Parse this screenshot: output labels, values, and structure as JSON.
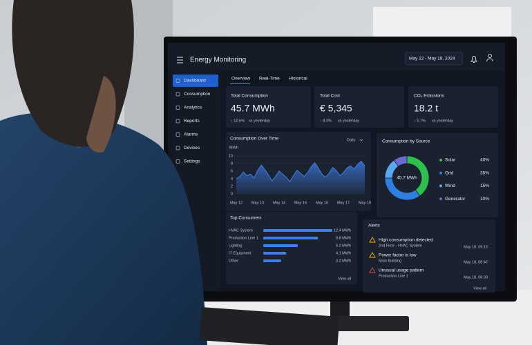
{
  "header": {
    "title": "Energy Monitoring",
    "date_range": "May 12 - May 18, 2024"
  },
  "nav": [
    "Dashboard",
    "Consumption",
    "Analytics",
    "Reports",
    "Alarms",
    "Devices",
    "Settings"
  ],
  "tabs": [
    "Overview",
    "Real-Time",
    "Historical"
  ],
  "kpis": [
    {
      "label": "Total Consumption",
      "value": "45.7 MWh",
      "change": "↑ 12.5%",
      "note": "vs yesterday"
    },
    {
      "label": "Total Cost",
      "value": "€ 5,345",
      "change": "↑ 8.3%",
      "note": "vs yesterday"
    },
    {
      "label": "CO₂ Emissions",
      "value": "18.2 t",
      "change": "↓ 5.7%",
      "note": "vs yesterday"
    }
  ],
  "area": {
    "title": "Consumption Over Time",
    "period": "Daily",
    "y_label": "MWh",
    "ylim": [
      0,
      10
    ],
    "yticks": [
      0,
      2,
      4,
      6,
      8,
      10
    ],
    "xticks": [
      "May 12",
      "May 13",
      "May 14",
      "May 15",
      "May 16",
      "May 17",
      "May 18"
    ],
    "color": "#3f7fe8",
    "values": [
      4,
      4.6,
      5.8,
      4.8,
      5.2,
      4.2,
      6.2,
      7.6,
      6.4,
      5,
      3.4,
      4.6,
      6,
      5.2,
      4.4,
      3.2,
      4.8,
      6.2,
      5.4,
      4.6,
      5.6,
      7.2,
      8.2,
      6.8,
      5.2,
      4.4,
      5.4,
      7,
      6.2,
      4.8,
      5.6,
      6.8,
      7.4,
      6.6,
      7.8,
      8.6,
      7.4
    ]
  },
  "donut": {
    "title": "Consumption by Source",
    "center": "45.7 MWh",
    "categories": [
      "Solar",
      "Grid",
      "Wind",
      "Generator"
    ],
    "values": [
      40,
      35,
      15,
      10
    ],
    "value_labels": [
      "40%",
      "35%",
      "15%",
      "10%"
    ],
    "colors": [
      "#2fbf4f",
      "#2f7fe0",
      "#5aa8f0",
      "#6b6bd6"
    ]
  },
  "consumers": {
    "title": "Top Consumers",
    "categories": [
      "HVAC System",
      "Production Line 1",
      "Lighting",
      "IT Equipment",
      "Other"
    ],
    "values": [
      12.4,
      9.8,
      6.2,
      4.1,
      3.2
    ],
    "value_labels": [
      "12.4 MWh",
      "9.8 MWh",
      "6.2 MWh",
      "4.1 MWh",
      "3.2 MWh"
    ],
    "color": "#3f7fe8",
    "link": "View all"
  },
  "alerts": {
    "title": "Alerts",
    "items": [
      {
        "title": "High consumption detected",
        "detail": "2nd Floor - HVAC System",
        "time": "May 18, 09:15",
        "level": "warning"
      },
      {
        "title": "Power factor is low",
        "detail": "Main Building",
        "time": "May 18, 08:47",
        "level": "warning"
      },
      {
        "title": "Unusual usage pattern",
        "detail": "Production Line 1",
        "time": "May 18, 08:30",
        "level": "critical"
      }
    ],
    "link": "View all"
  }
}
